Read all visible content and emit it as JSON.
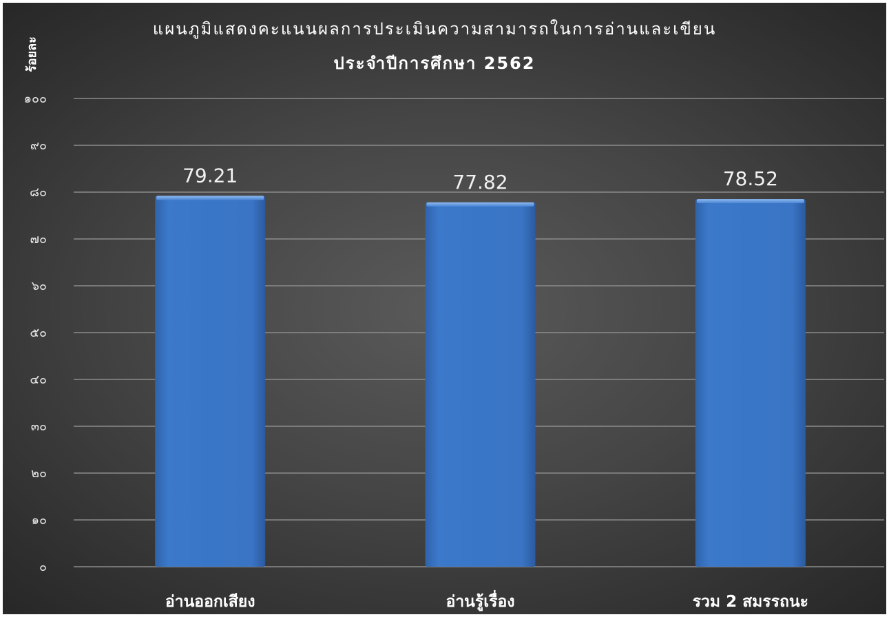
{
  "chart_data": {
    "type": "bar",
    "title": "แผนภูมิแสดงคะแนนผลการประเมินความสามารถในการอ่านและเขียน",
    "subtitle": "ประจำปีการศึกษา  2562",
    "xlabel": "",
    "ylabel": "ร้อยละ",
    "ylim": [
      0,
      100
    ],
    "yticks": [
      0,
      10,
      20,
      30,
      40,
      50,
      60,
      70,
      80,
      90,
      100
    ],
    "ytick_labels": [
      "๐",
      "๑๐",
      "๒๐",
      "๓๐",
      "๔๐",
      "๕๐",
      "๖๐",
      "๗๐",
      "๘๐",
      "๙๐",
      "๑๐๐"
    ],
    "categories": [
      "อ่านออกเสียง",
      "อ่านรู้เรื่อง",
      "รวม 2 สมรรถนะ"
    ],
    "values": [
      79.21,
      77.82,
      78.52
    ],
    "data_labels": [
      "79.21",
      "77.82",
      "78.52"
    ],
    "grid": true,
    "legend": "none",
    "colors": {
      "bar": "#3a76c8",
      "bar_top": "#6ea2e6",
      "background": "#454545",
      "gridline": "#8c8c8c",
      "text": "#ffffff"
    }
  }
}
